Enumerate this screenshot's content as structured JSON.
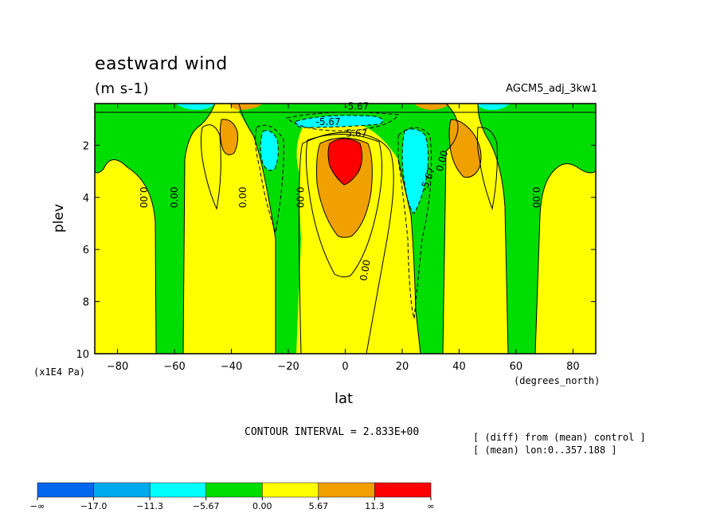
{
  "chart_data": {
    "type": "heatmap",
    "title": "eastward wind",
    "subtitle": "(m s-1)",
    "run_label": "AGCM5_adj_3kw1",
    "xlabel": "lat",
    "x_units": "(degrees_north)",
    "ylabel": "plev",
    "y_units": "(x1E4 Pa)",
    "xlim": [
      -88,
      88
    ],
    "ylim": [
      10,
      0.4
    ],
    "x_ticks": [
      -80,
      -60,
      -40,
      -20,
      0,
      20,
      40,
      60,
      80
    ],
    "x_tick_labels": [
      "−80",
      "−60",
      "−40",
      "−20",
      "0",
      "20",
      "40",
      "60",
      "80"
    ],
    "y_ticks": [
      2,
      4,
      6,
      8,
      10
    ],
    "y_tick_labels": [
      "2",
      "4",
      "6",
      "8",
      "10"
    ],
    "contour_interval_text": "CONTOUR INTERVAL = 2.833E+00",
    "notes": [
      "[ (diff) from (mean) control ]",
      "[ (mean) lon:0..357.188 ]"
    ],
    "colorbar": {
      "colors": [
        "#0066ee",
        "#00aaee",
        "#00ffff",
        "#00dd00",
        "#ffff00",
        "#f0a000",
        "#ff0000"
      ],
      "labels": [
        "−∞",
        "−17.0",
        "−11.3",
        "−5.67",
        "0.00",
        "5.67",
        "11.3",
        "∞"
      ]
    },
    "contour_labels": [
      {
        "text": "0.00",
        "lat": -71,
        "plev": 4.0,
        "rotate": 90
      },
      {
        "text": "0.00",
        "lat": -60,
        "plev": 4.0,
        "rotate": -90
      },
      {
        "text": "0.00",
        "lat": -36,
        "plev": 4.0,
        "rotate": -90
      },
      {
        "text": "0.00",
        "lat": -16,
        "plev": 4.0,
        "rotate": 90
      },
      {
        "text": "0.00",
        "lat": 67,
        "plev": 4.0,
        "rotate": 90
      },
      {
        "text": "0.00",
        "lat": 7,
        "plev": 6.8,
        "rotate": -80
      },
      {
        "text": "0.00",
        "lat": 34,
        "plev": 2.6,
        "rotate": -75
      },
      {
        "text": "-5.67",
        "lat": 29,
        "plev": 3.3,
        "rotate": -70
      },
      {
        "text": "-5.67",
        "lat": 4,
        "plev": 0.5,
        "rotate": 0
      },
      {
        "text": "-5.67",
        "lat": -6,
        "plev": 1.1,
        "rotate": 0
      },
      {
        "text": "5.67",
        "lat": 4,
        "plev": 1.55,
        "rotate": 0
      }
    ]
  }
}
